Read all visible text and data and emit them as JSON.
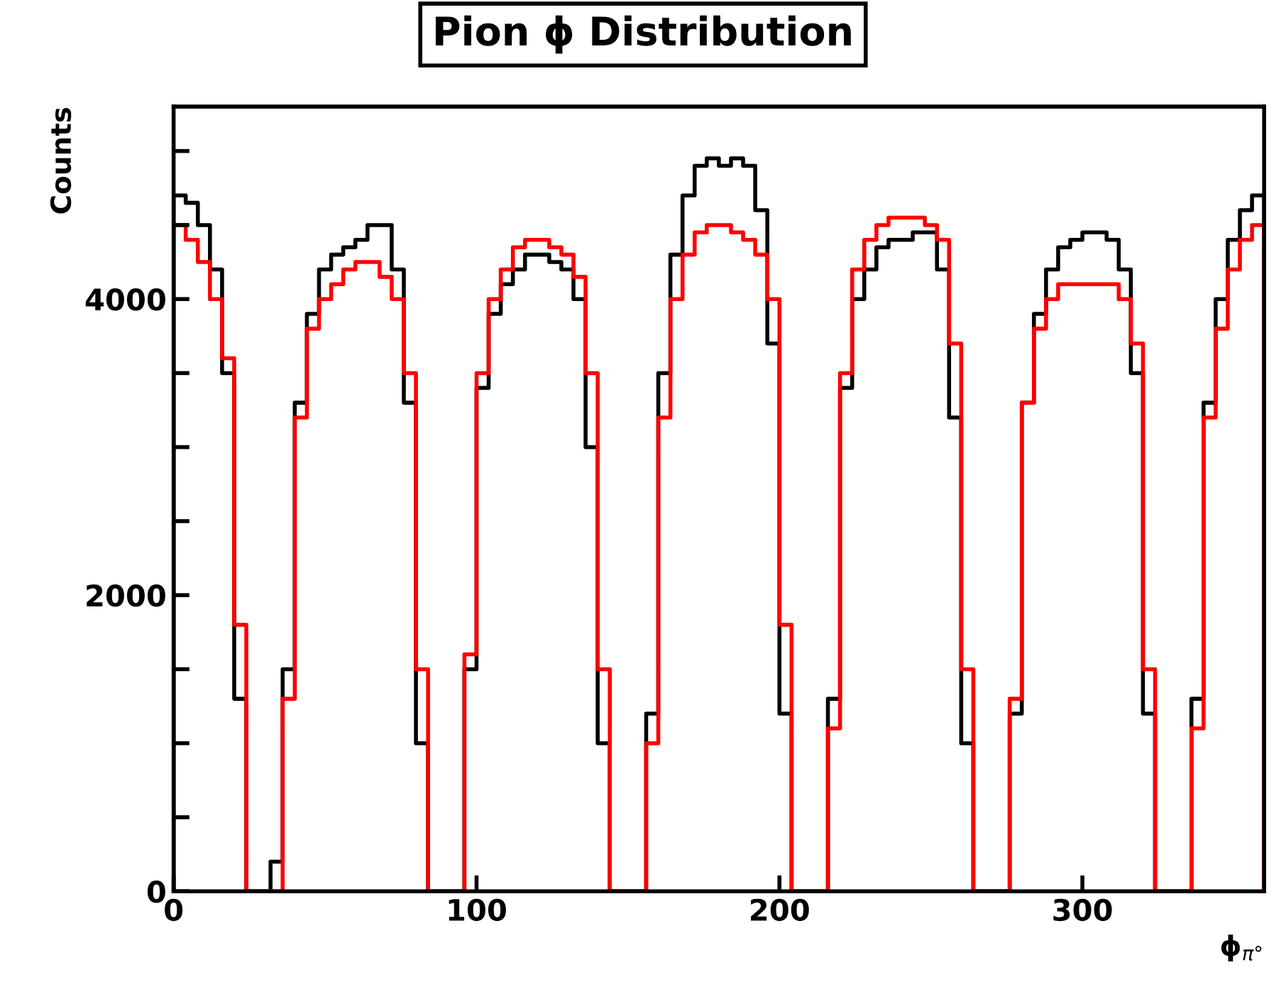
{
  "chart_data": {
    "type": "histogram",
    "title": "Pion ϕ Distribution",
    "xlabel": "ϕ$_{π°}$",
    "ylabel": "Counts",
    "bins": [
      0,
      4,
      8,
      12,
      16,
      20,
      24,
      28,
      32,
      36,
      40,
      44,
      48,
      52,
      56,
      60,
      64,
      68,
      72,
      76,
      80,
      84,
      88,
      92,
      96,
      100,
      104,
      108,
      112,
      116,
      120,
      124,
      128,
      132,
      136,
      140,
      144,
      148,
      152,
      156,
      160,
      164,
      168,
      172,
      176,
      180,
      184,
      188,
      192,
      196,
      200,
      204,
      208,
      212,
      216,
      220,
      224,
      228,
      232,
      236,
      240,
      244,
      248,
      252,
      256,
      260,
      264,
      268,
      272,
      276,
      280,
      284,
      288,
      292,
      296,
      300,
      304,
      308,
      312,
      316,
      320,
      324,
      328,
      332,
      336,
      340,
      344,
      348,
      352,
      356,
      360
    ],
    "series": [
      {
        "color": "#000000",
        "values": [
          4700,
          4650,
          4500,
          4200,
          3500,
          1300,
          0,
          0,
          200,
          1500,
          3300,
          3900,
          4200,
          4300,
          4350,
          4400,
          4500,
          4500,
          4200,
          3300,
          1000,
          0,
          0,
          0,
          1500,
          3400,
          3900,
          4100,
          4200,
          4300,
          4300,
          4250,
          4200,
          4000,
          3000,
          1000,
          0,
          0,
          0,
          1200,
          3500,
          4300,
          4700,
          4900,
          4950,
          4900,
          4950,
          4900,
          4600,
          3700,
          1200,
          0,
          0,
          0,
          1300,
          3400,
          4000,
          4200,
          4350,
          4400,
          4400,
          4450,
          4450,
          4200,
          3200,
          1000,
          0,
          0,
          0,
          1200,
          3300,
          3900,
          4200,
          4350,
          4400,
          4450,
          4450,
          4400,
          4200,
          3500,
          1200,
          0,
          0,
          0,
          1300,
          3300,
          4000,
          4400,
          4600,
          4700
        ]
      },
      {
        "color": "#ff0000",
        "values": [
          4500,
          4400,
          4250,
          4000,
          3600,
          1800,
          0,
          0,
          0,
          1300,
          3200,
          3800,
          4000,
          4100,
          4200,
          4250,
          4250,
          4150,
          4000,
          3500,
          1500,
          0,
          0,
          0,
          1600,
          3500,
          4000,
          4200,
          4350,
          4400,
          4400,
          4350,
          4300,
          4150,
          3500,
          1500,
          0,
          0,
          0,
          1000,
          3200,
          4000,
          4300,
          4450,
          4500,
          4500,
          4450,
          4400,
          4300,
          4000,
          1800,
          0,
          0,
          0,
          1100,
          3500,
          4200,
          4400,
          4500,
          4550,
          4550,
          4550,
          4500,
          4400,
          3700,
          1500,
          0,
          0,
          0,
          1300,
          3300,
          3800,
          4000,
          4100,
          4100,
          4100,
          4100,
          4100,
          4000,
          3700,
          1500,
          0,
          0,
          0,
          1100,
          3200,
          3800,
          4200,
          4400,
          4500
        ]
      }
    ],
    "xlim": [
      0,
      360
    ],
    "xticks": [
      0,
      100,
      200,
      300
    ],
    "ylim": [
      0,
      5300
    ],
    "yticks": [
      0,
      {
        "value": 500,
        "label": null
      },
      {
        "value": 1000,
        "label": null
      },
      {
        "value": 1500,
        "label": null
      },
      2000,
      {
        "value": 2500,
        "label": null
      },
      {
        "value": 3000,
        "label": null
      },
      {
        "value": 3500,
        "label": null
      },
      4000,
      {
        "value": 4500,
        "label": null
      },
      {
        "value": 5000,
        "label": null
      }
    ],
    "grid": false,
    "legend": false
  }
}
